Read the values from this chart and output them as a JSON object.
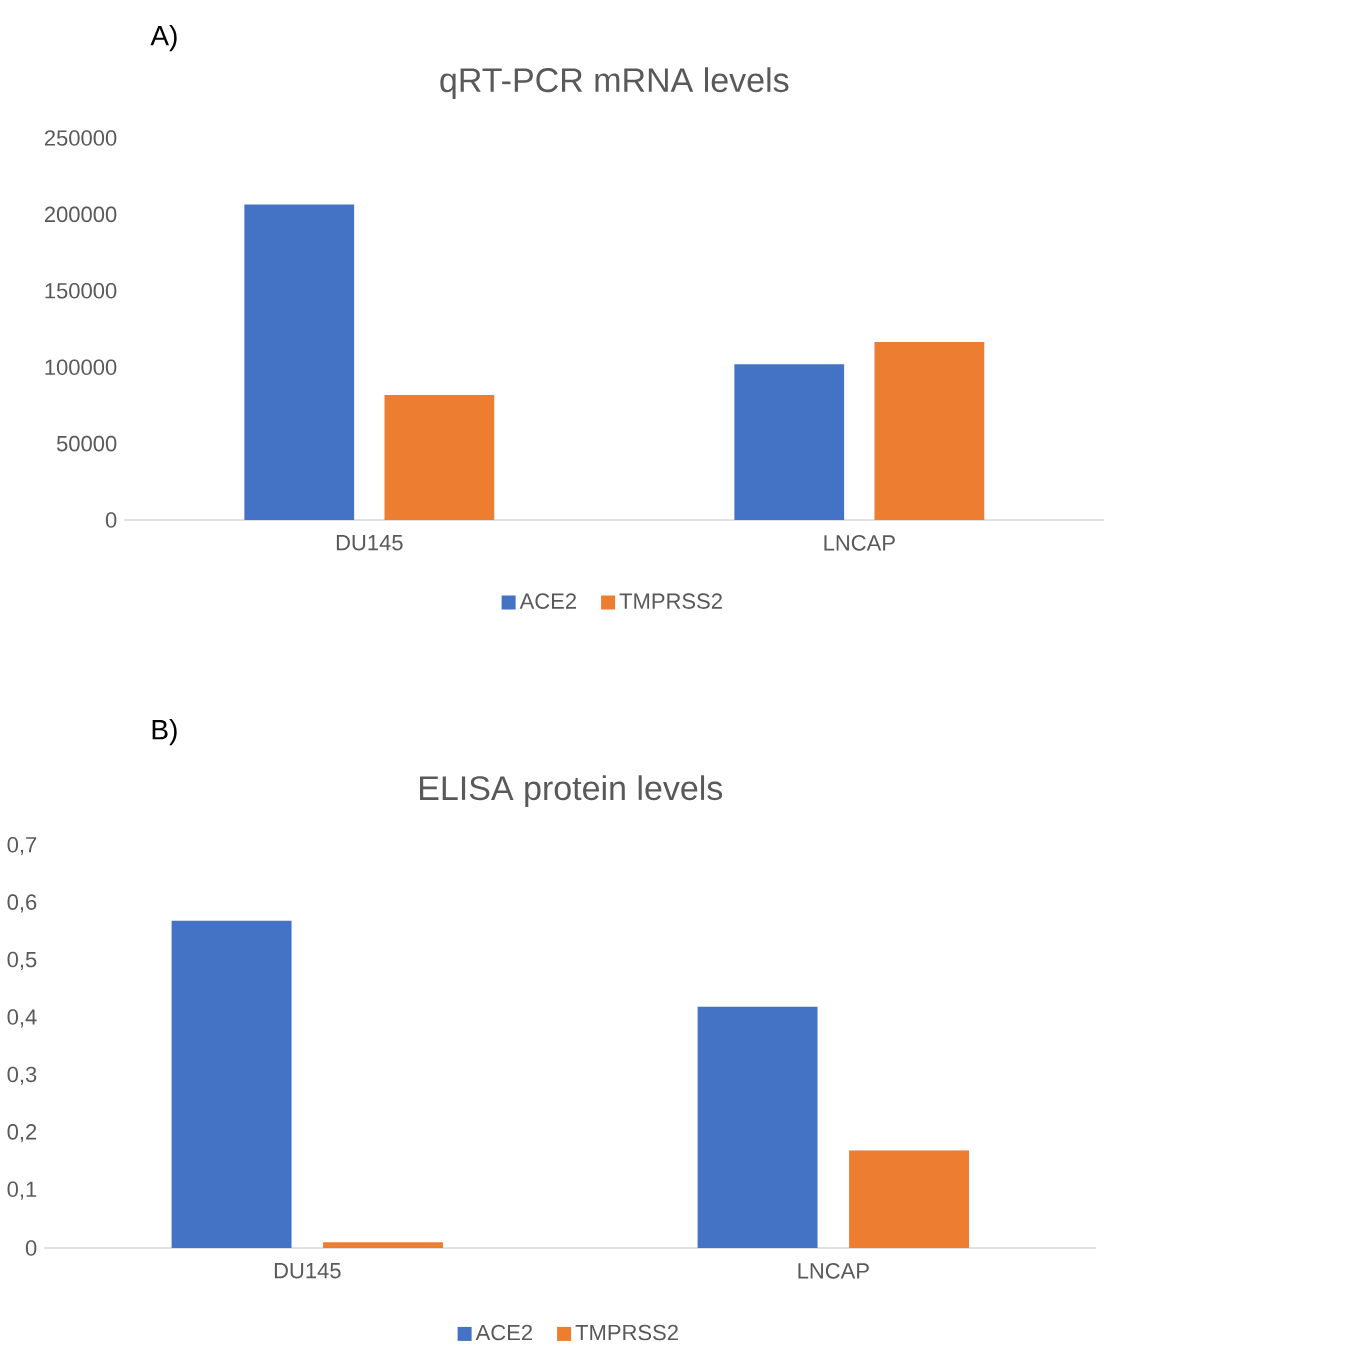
{
  "chart_data": [
    {
      "type": "bar",
      "title": "qRT-PCR mRNA levels",
      "annotations": [
        "A)"
      ],
      "categories": [
        "DU145",
        "LNCAP"
      ],
      "series": [
        {
          "name": "ACE2",
          "color": "#4472c4",
          "values": [
            206500,
            102000
          ]
        },
        {
          "name": "TMPRSS2",
          "color": "#ed7d31",
          "values": [
            81800,
            116500
          ]
        }
      ],
      "ylim": [
        0,
        250000
      ],
      "yticks": [
        0,
        50000,
        100000,
        150000,
        200000,
        250000
      ],
      "legend": "bottom"
    },
    {
      "type": "bar",
      "title": "ELISA protein levels",
      "annotations": [
        "B)"
      ],
      "categories": [
        "DU145",
        "LNCAP"
      ],
      "series": [
        {
          "name": "ACE2",
          "color": "#4472c4",
          "values": [
            0.57,
            0.42
          ]
        },
        {
          "name": "TMPRSS2",
          "color": "#ed7d31",
          "values": [
            0.01,
            0.17
          ]
        }
      ],
      "ylim": [
        0,
        0.7
      ],
      "yticks": [
        {
          "value": 0,
          "label": "0"
        },
        {
          "value": 0.1,
          "label": "0,1"
        },
        {
          "value": 0.2,
          "label": "0,2"
        },
        {
          "value": 0.3,
          "label": "0,3"
        },
        {
          "value": 0.4,
          "label": "0,4"
        },
        {
          "value": 0.5,
          "label": "0,5"
        },
        {
          "value": 0.6,
          "label": "0,6"
        },
        {
          "value": 0.7,
          "label": "0,7"
        }
      ],
      "legend": "bottom"
    }
  ]
}
